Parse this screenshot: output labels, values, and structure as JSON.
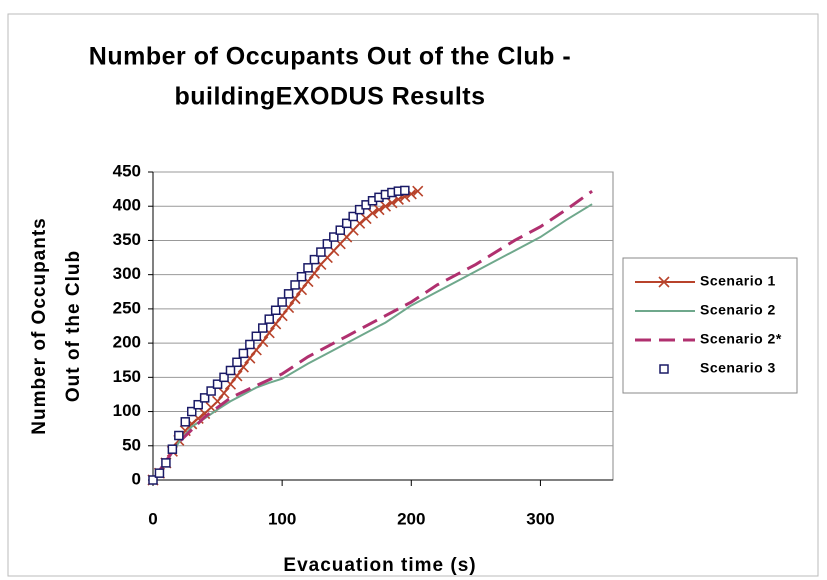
{
  "chart_data": {
    "type": "line",
    "title": [
      "Number of Occupants Out of the Club -",
      "buildingEXODUS Results"
    ],
    "x_label": "Evacuation time (s)",
    "y_label": [
      "Number of Occupants",
      "Out of the Club"
    ],
    "xlim": [
      0,
      350
    ],
    "xticks": [
      0,
      100,
      200,
      300
    ],
    "ylim": [
      0,
      450
    ],
    "yticks": [
      0,
      50,
      100,
      150,
      200,
      250,
      300,
      350,
      400,
      450
    ],
    "grid": true,
    "legend": "right",
    "series": [
      {
        "name": "Scenario 1",
        "color": "#b8432b",
        "marker": "x",
        "line_style": "solid",
        "x": [
          0,
          5,
          10,
          15,
          20,
          25,
          30,
          35,
          40,
          45,
          50,
          55,
          60,
          65,
          70,
          75,
          80,
          85,
          90,
          95,
          100,
          105,
          110,
          115,
          120,
          125,
          130,
          135,
          140,
          145,
          150,
          155,
          160,
          165,
          170,
          175,
          180,
          185,
          190,
          195,
          200,
          205
        ],
        "values": [
          0,
          10,
          25,
          42,
          58,
          72,
          82,
          90,
          97,
          106,
          115,
          127,
          140,
          152,
          165,
          178,
          190,
          202,
          215,
          228,
          240,
          252,
          265,
          278,
          290,
          302,
          315,
          325,
          335,
          345,
          355,
          365,
          375,
          382,
          390,
          395,
          400,
          405,
          410,
          414,
          418,
          422
        ]
      },
      {
        "name": "Scenario 2",
        "color": "#6fa88c",
        "marker": null,
        "line_style": "solid",
        "x": [
          0,
          10,
          20,
          30,
          40,
          50,
          60,
          70,
          80,
          90,
          100,
          120,
          140,
          160,
          180,
          200,
          220,
          240,
          260,
          280,
          300,
          320,
          340
        ],
        "values": [
          0,
          25,
          55,
          78,
          90,
          103,
          115,
          125,
          135,
          142,
          148,
          170,
          190,
          210,
          230,
          255,
          275,
          295,
          315,
          335,
          355,
          380,
          403
        ]
      },
      {
        "name": "Scenario 2*",
        "color": "#b0306f",
        "marker": null,
        "line_style": "dashed",
        "x": [
          0,
          20,
          40,
          60,
          80,
          100,
          120,
          150,
          180,
          200,
          220,
          250,
          280,
          300,
          320,
          340
        ],
        "values": [
          0,
          55,
          92,
          120,
          138,
          155,
          180,
          210,
          240,
          260,
          285,
          315,
          350,
          370,
          395,
          422
        ]
      },
      {
        "name": "Scenario 3",
        "color": "#1a1a66",
        "marker": "square",
        "line_style": "none",
        "x": [
          0,
          5,
          10,
          15,
          20,
          25,
          30,
          35,
          40,
          45,
          50,
          55,
          60,
          65,
          70,
          75,
          80,
          85,
          90,
          95,
          100,
          105,
          110,
          115,
          120,
          125,
          130,
          135,
          140,
          145,
          150,
          155,
          160,
          165,
          170,
          175,
          180,
          185,
          190,
          195
        ],
        "values": [
          0,
          10,
          25,
          45,
          65,
          85,
          100,
          110,
          120,
          130,
          140,
          150,
          160,
          172,
          185,
          198,
          210,
          222,
          235,
          248,
          260,
          272,
          285,
          297,
          310,
          322,
          333,
          345,
          355,
          365,
          375,
          385,
          395,
          402,
          408,
          413,
          417,
          420,
          422,
          423
        ]
      }
    ]
  }
}
